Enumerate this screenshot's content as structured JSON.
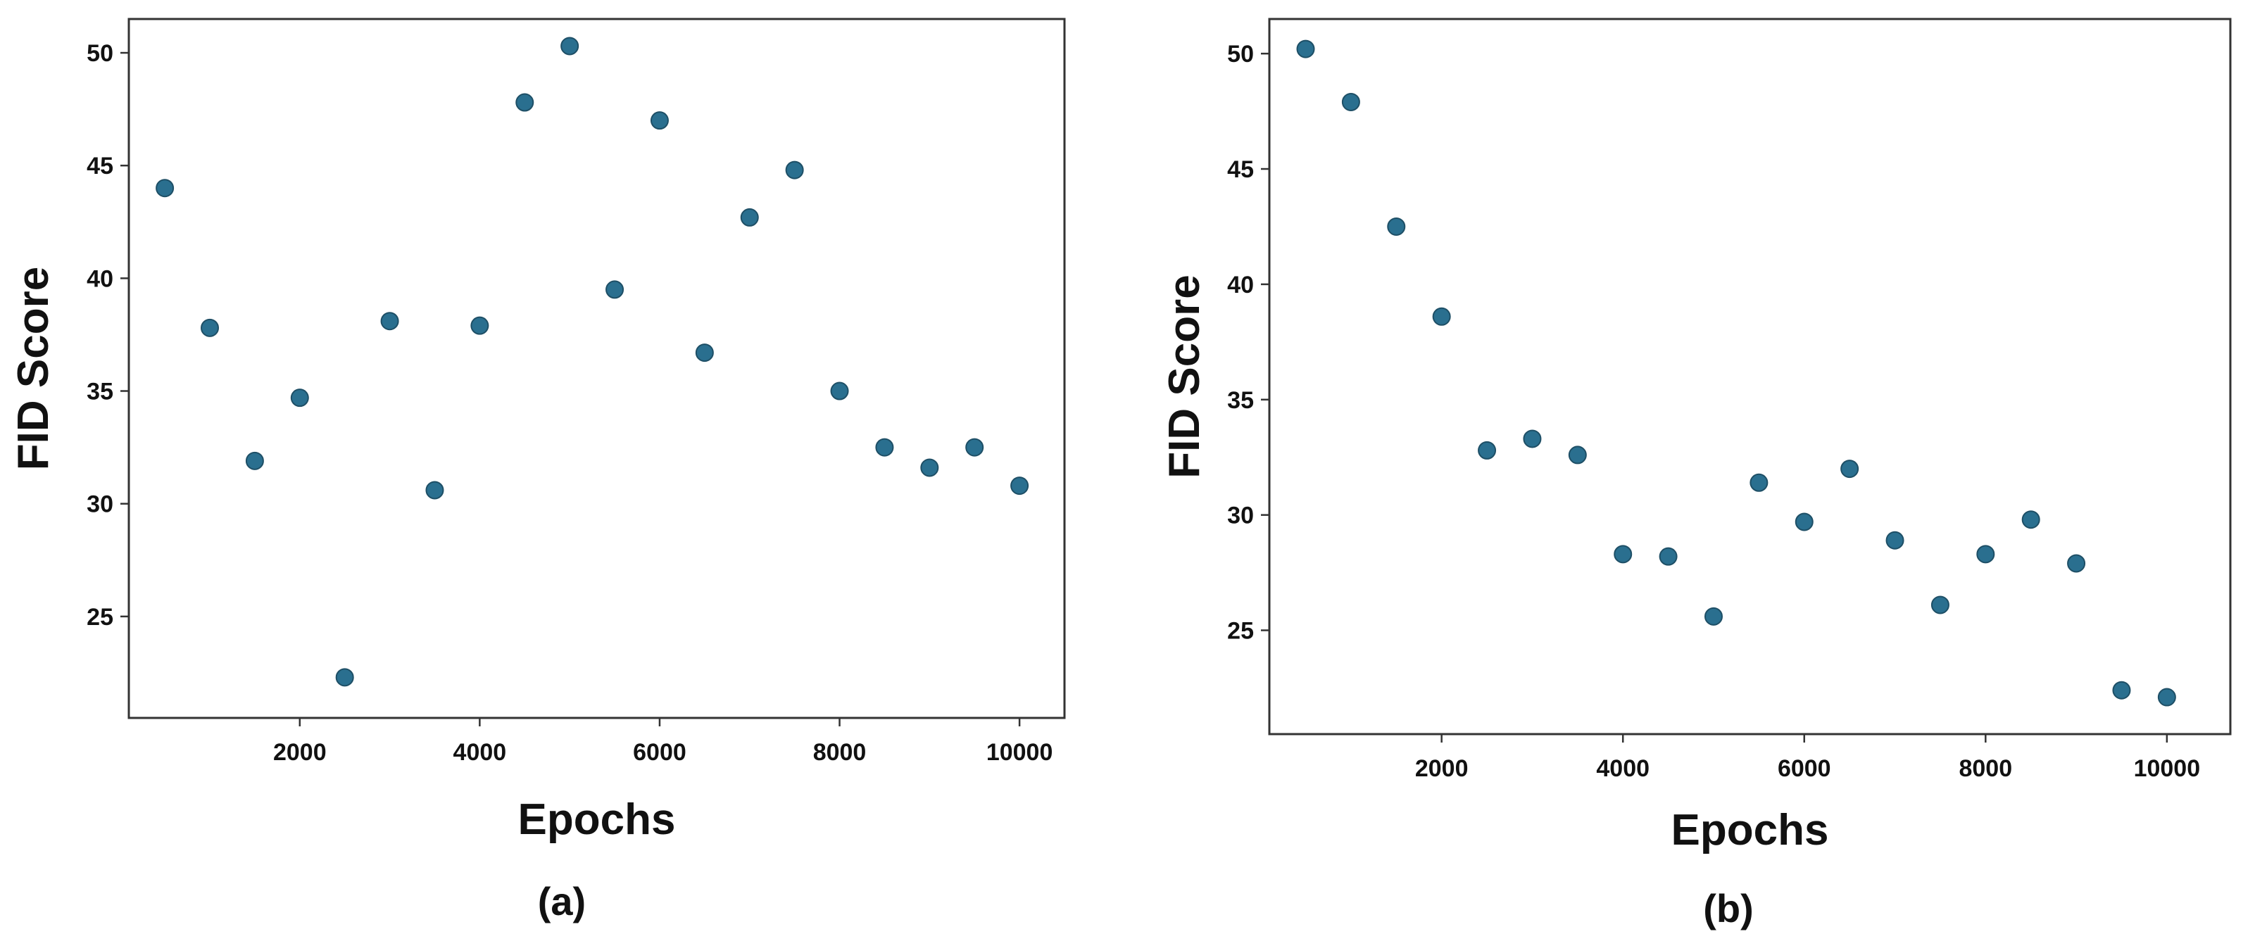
{
  "chart_data": [
    {
      "type": "scatter",
      "caption": "(a)",
      "title": "",
      "xlabel": "Epochs",
      "ylabel": "FID Score",
      "x_ticks": [
        2000,
        4000,
        6000,
        8000,
        10000
      ],
      "y_ticks": [
        25,
        30,
        35,
        40,
        45,
        50
      ],
      "xlim": [
        100,
        10500
      ],
      "ylim": [
        20.5,
        51.5
      ],
      "grid": false,
      "marker_color": "#2a6f8f",
      "series": [
        {
          "x": [
            500,
            1000,
            1500,
            2000,
            2500,
            3000,
            3500,
            4000,
            4500,
            5000,
            5500,
            6000,
            6500,
            7000,
            7500,
            8000,
            8500,
            9000,
            9500,
            10000
          ],
          "y": [
            44.0,
            37.8,
            31.9,
            34.7,
            22.3,
            38.1,
            30.6,
            37.9,
            47.8,
            50.3,
            39.5,
            47.0,
            36.7,
            42.7,
            44.8,
            35.0,
            32.5,
            31.6,
            32.5,
            30.8
          ]
        }
      ]
    },
    {
      "type": "scatter",
      "caption": "(b)",
      "title": "",
      "xlabel": "Epochs",
      "ylabel": "FID Score",
      "x_ticks": [
        2000,
        4000,
        6000,
        8000,
        10000
      ],
      "y_ticks": [
        25,
        30,
        35,
        40,
        45,
        50
      ],
      "xlim": [
        100,
        10700
      ],
      "ylim": [
        20.5,
        51.5
      ],
      "grid": false,
      "marker_color": "#2a6f8f",
      "series": [
        {
          "x": [
            500,
            1000,
            1500,
            2000,
            2500,
            3000,
            3500,
            4000,
            4500,
            5000,
            5500,
            6000,
            6500,
            7000,
            7500,
            8000,
            8500,
            9000,
            9500,
            10000
          ],
          "y": [
            50.2,
            47.9,
            42.5,
            38.6,
            32.8,
            33.3,
            32.6,
            28.3,
            28.2,
            25.6,
            31.4,
            29.7,
            32.0,
            28.9,
            26.1,
            28.3,
            29.8,
            27.9,
            22.4,
            22.1
          ]
        }
      ]
    }
  ]
}
